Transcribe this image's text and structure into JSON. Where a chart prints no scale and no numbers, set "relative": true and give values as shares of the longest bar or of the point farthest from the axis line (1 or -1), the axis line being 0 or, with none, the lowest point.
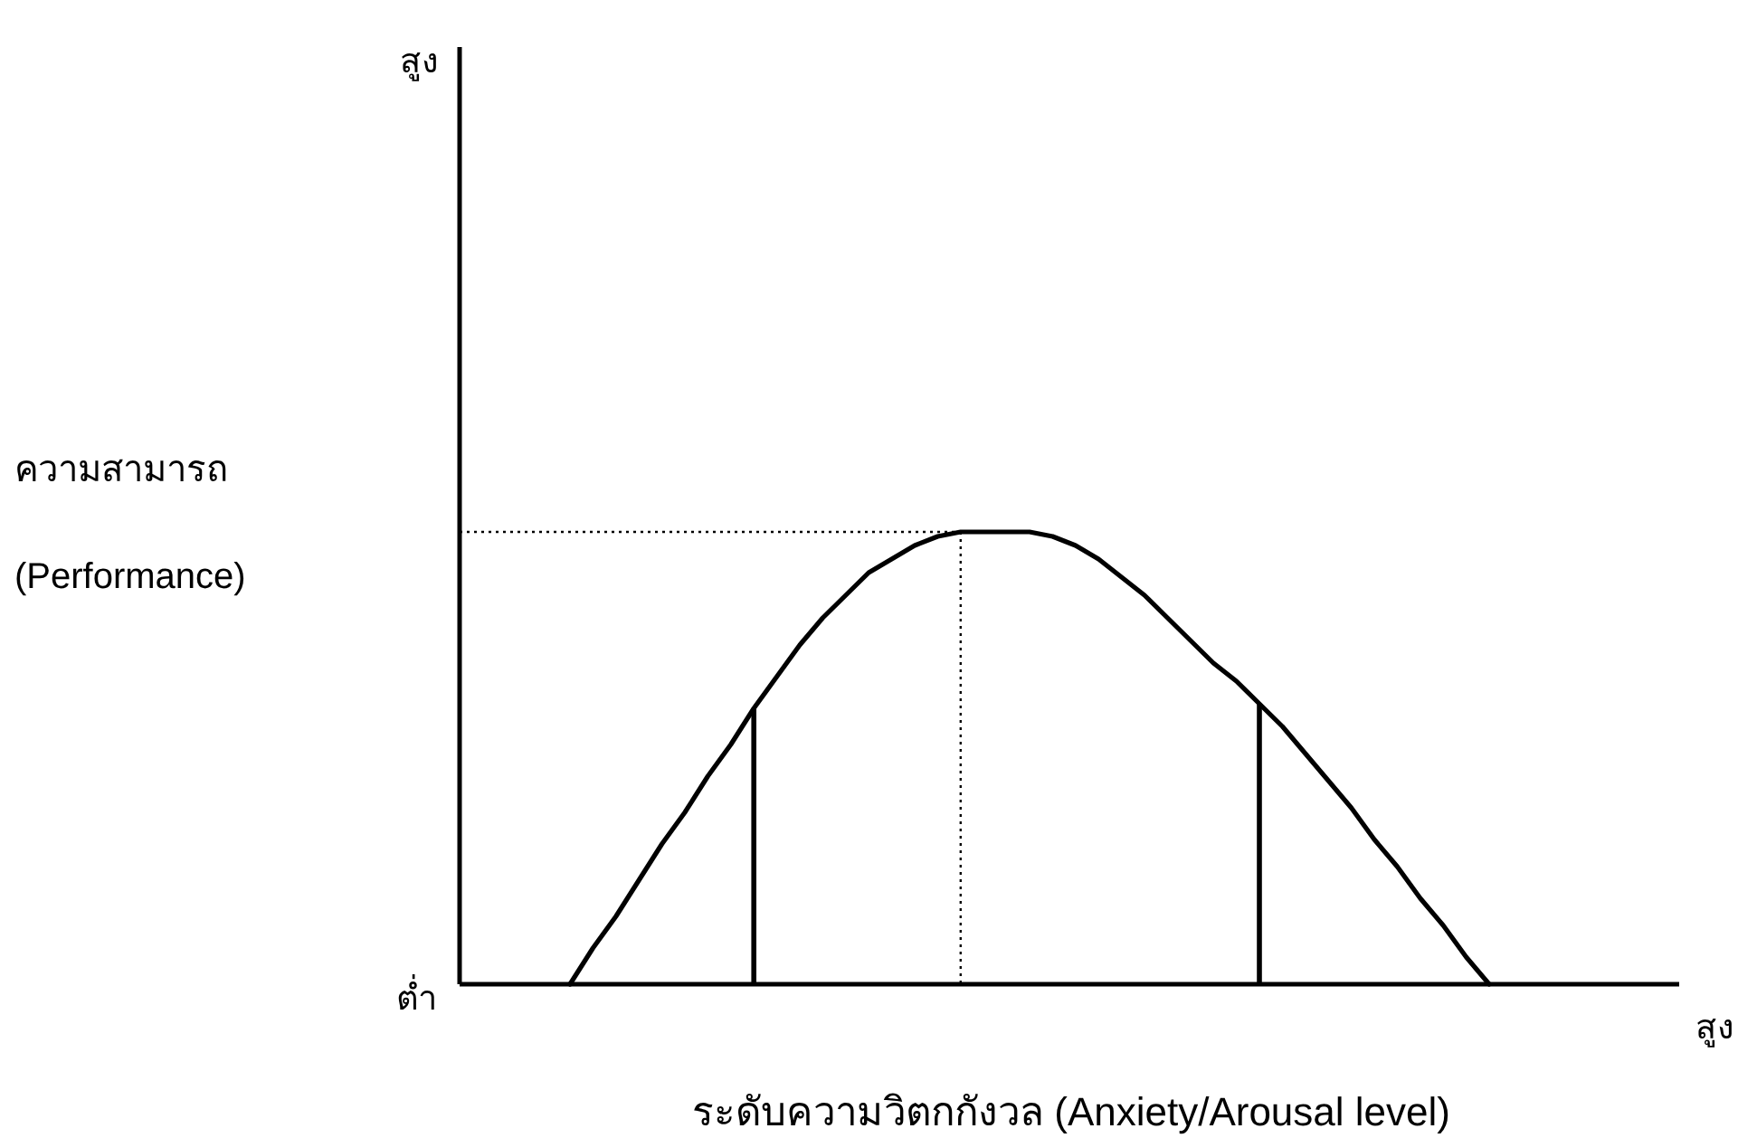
{
  "chart_data": {
    "type": "line",
    "relative": true,
    "xlabel": "ระดับความวิตกกังวล (Anxiety/Arousal level)",
    "ylabel": "ความสามารถ\n(Performance)",
    "annotations": [
      "สูง",
      "ต่ำ",
      "สูง"
    ],
    "categories": [
      null,
      null,
      null,
      null,
      null,
      null,
      null,
      null,
      null,
      null,
      null,
      null,
      null,
      null,
      null,
      null,
      null,
      null,
      null,
      null,
      null,
      null,
      null,
      null,
      null,
      null,
      null,
      null,
      null,
      null,
      null,
      null,
      null,
      null,
      null,
      null,
      null,
      null,
      null,
      null,
      null
    ],
    "series": [
      {
        "color": "#000000",
        "line_style": "solid",
        "values": [
          0,
          0.08,
          0.15,
          0.23,
          0.31,
          0.38,
          0.46,
          0.53,
          0.61,
          0.68,
          0.75,
          0.81,
          0.86,
          0.91,
          0.94,
          0.97,
          0.99,
          1,
          1,
          1,
          1,
          0.99,
          0.97,
          0.94,
          0.9,
          0.86,
          0.81,
          0.76,
          0.71,
          0.67,
          0.62,
          0.57,
          0.51,
          0.45,
          0.39,
          0.32,
          0.26,
          0.19,
          0.13,
          0.06,
          0
        ]
      }
    ],
    "ref_lines": [
      {
        "axis": "y",
        "value": 1,
        "color": "#000000",
        "line_style": "dotted"
      }
    ]
  }
}
